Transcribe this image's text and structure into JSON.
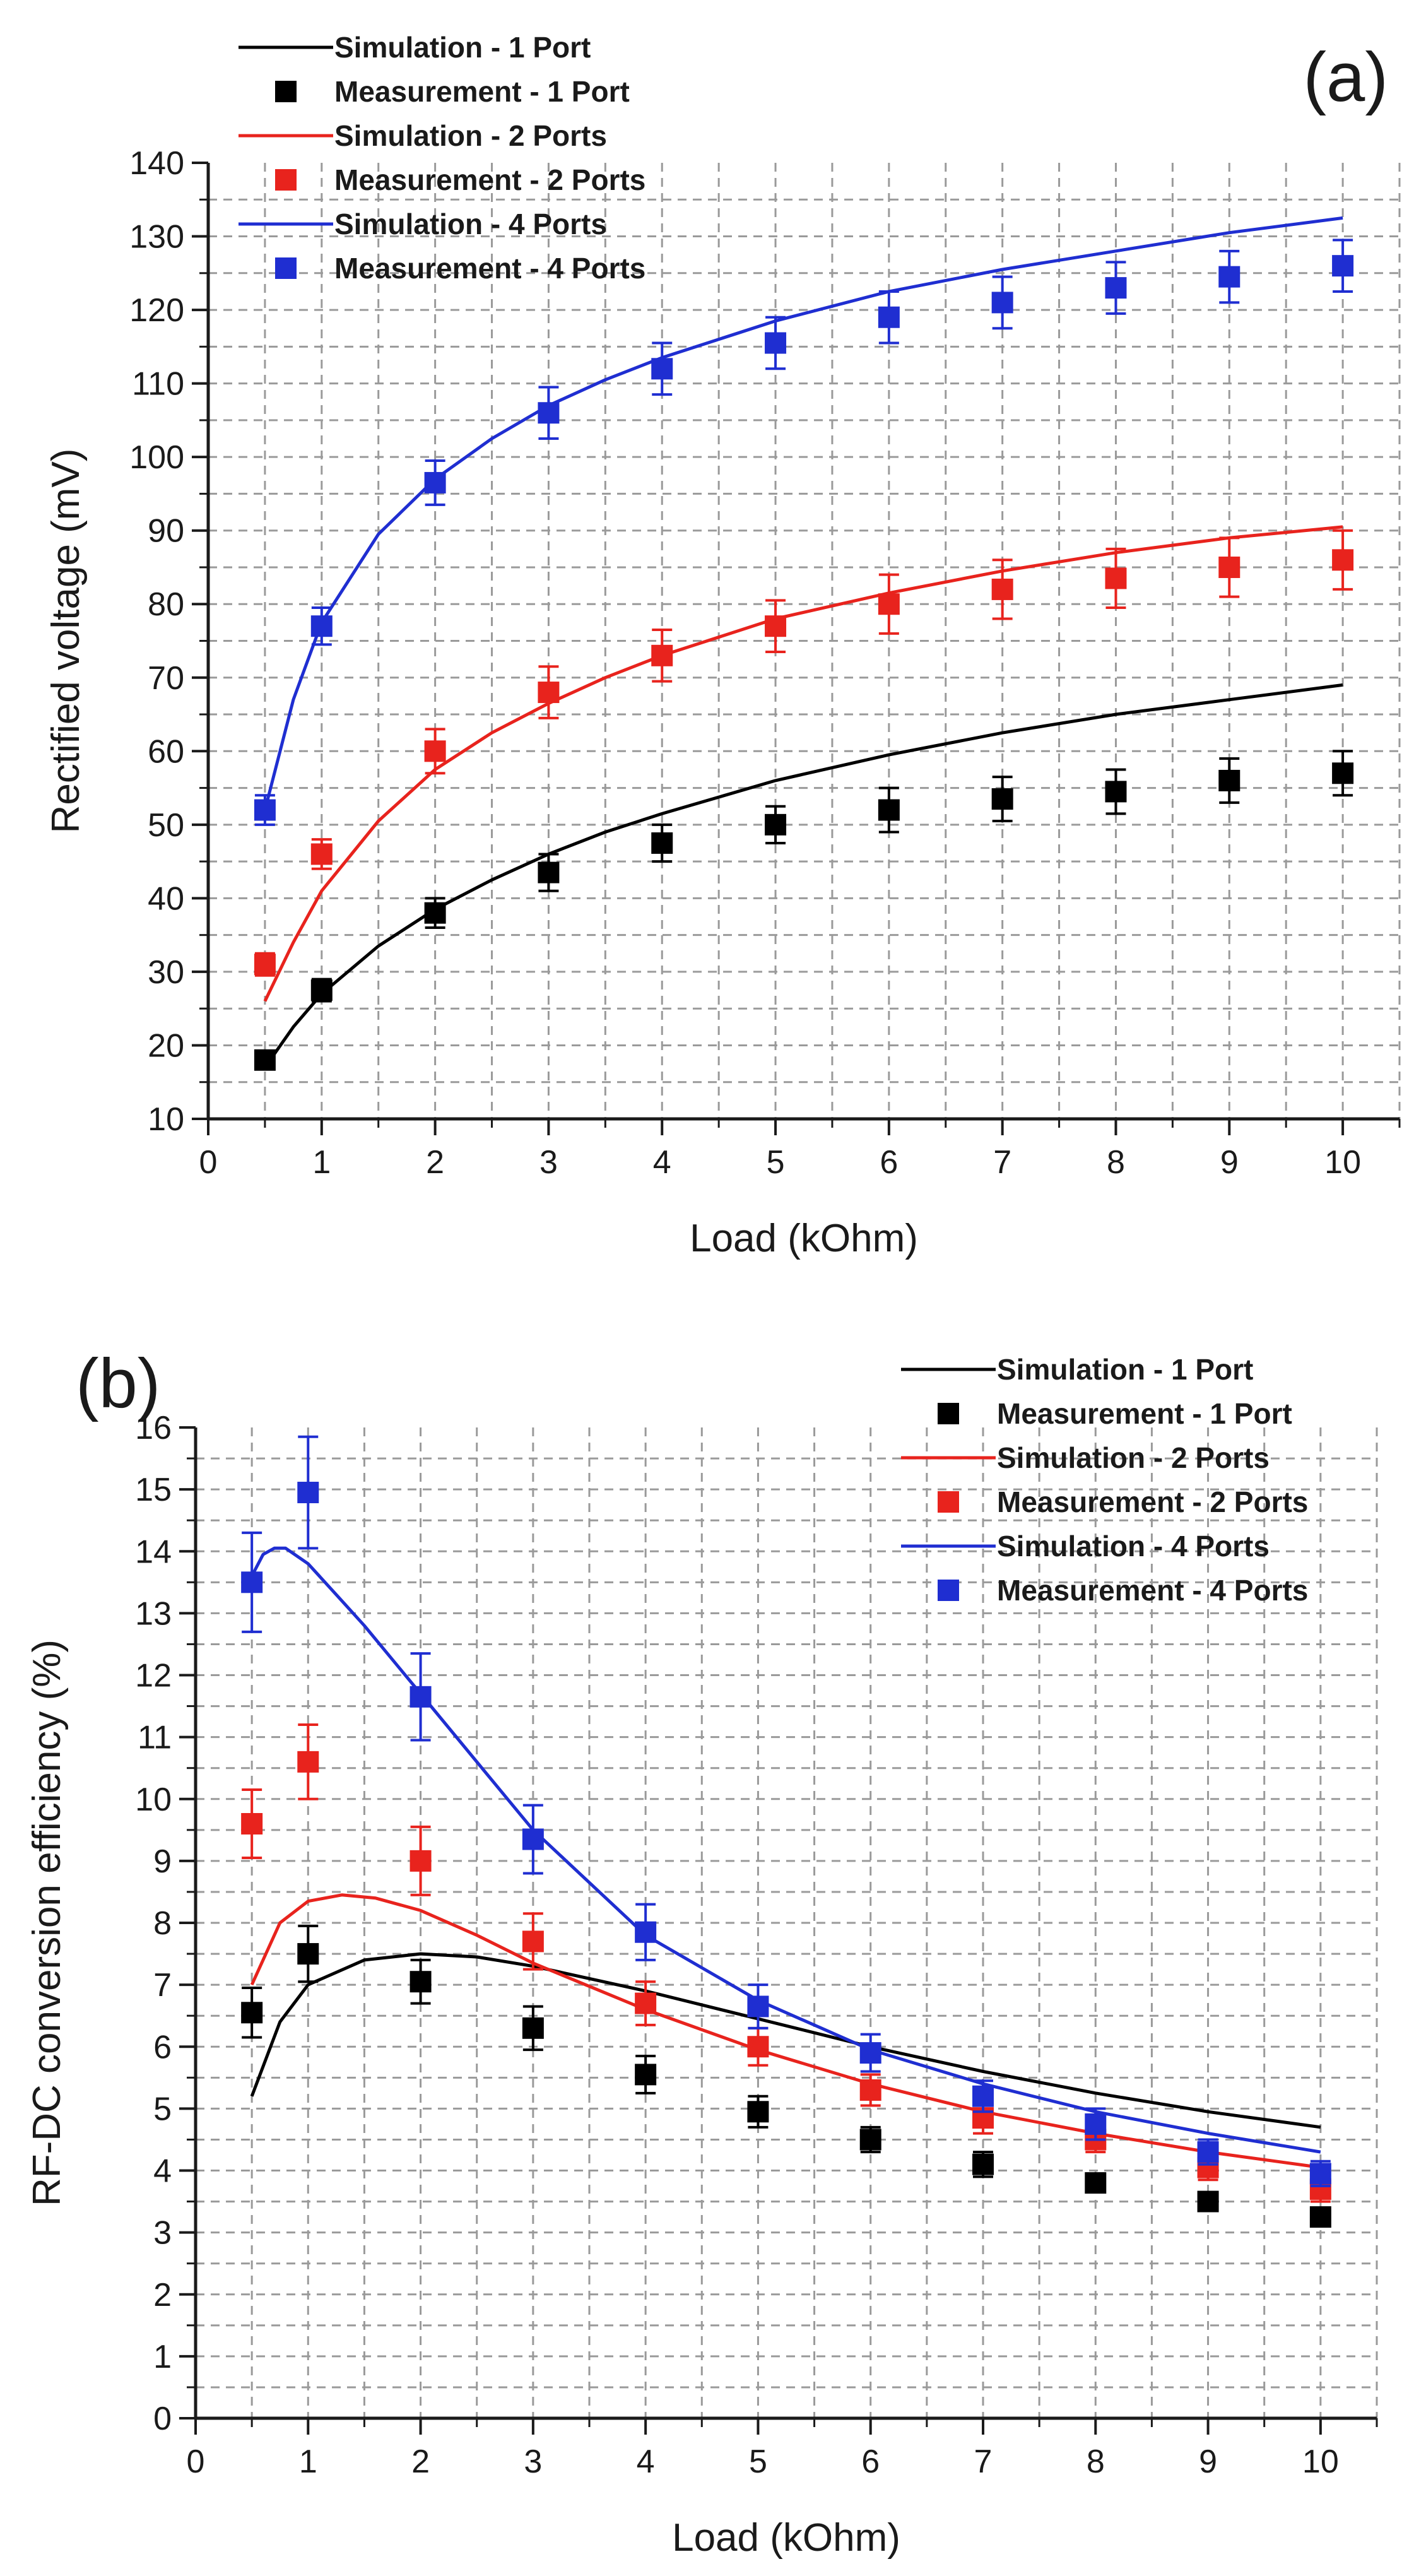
{
  "chart_data": [
    {
      "panel_label": "(a)",
      "type": "line",
      "xlabel": "Load (kOhm)",
      "ylabel": "Rectified voltage (mV)",
      "xlim": [
        0,
        10.5
      ],
      "ylim": [
        10,
        140
      ],
      "xticks": [
        0,
        1,
        2,
        3,
        4,
        5,
        6,
        7,
        8,
        9,
        10
      ],
      "yticks": [
        10,
        20,
        30,
        40,
        50,
        60,
        70,
        80,
        90,
        100,
        110,
        120,
        130,
        140
      ],
      "grid": true,
      "legend_position": "top-left",
      "series": [
        {
          "name": "Simulation - 1 Port",
          "kind": "line",
          "color": "#000000",
          "x": [
            0.5,
            0.75,
            1,
            1.5,
            2,
            2.5,
            3,
            3.5,
            4,
            5,
            6,
            7,
            8,
            9,
            10
          ],
          "y": [
            17,
            22.5,
            27,
            33.5,
            38.5,
            42.5,
            46,
            49,
            51.5,
            56,
            59.5,
            62.5,
            65,
            67,
            69
          ]
        },
        {
          "name": "Measurement - 1 Port",
          "kind": "marker",
          "color": "#000000",
          "x": [
            0.5,
            1,
            2,
            3,
            4,
            5,
            6,
            7,
            8,
            9,
            10
          ],
          "y": [
            18,
            27.5,
            38,
            43.5,
            47.5,
            50,
            52,
            53.5,
            54.5,
            56,
            57
          ],
          "err": [
            1,
            1.5,
            2,
            2.5,
            2.5,
            2.5,
            3,
            3,
            3,
            3,
            3
          ]
        },
        {
          "name": "Simulation - 2 Ports",
          "kind": "line",
          "color": "#e8231d",
          "x": [
            0.5,
            0.75,
            1,
            1.5,
            2,
            2.5,
            3,
            3.5,
            4,
            5,
            6,
            7,
            8,
            9,
            10
          ],
          "y": [
            26,
            34,
            41,
            50.5,
            57.5,
            62.5,
            66.5,
            70,
            73,
            78,
            81.5,
            84.5,
            87,
            89,
            90.5
          ]
        },
        {
          "name": "Measurement - 2 Ports",
          "kind": "marker",
          "color": "#e8231d",
          "x": [
            0.5,
            1,
            2,
            3,
            4,
            5,
            6,
            7,
            8,
            9,
            10
          ],
          "y": [
            31,
            46,
            60,
            68,
            73,
            77,
            80,
            82,
            83.5,
            85,
            86
          ],
          "err": [
            1.5,
            2,
            3,
            3.5,
            3.5,
            3.5,
            4,
            4,
            4,
            4,
            4
          ]
        },
        {
          "name": "Simulation - 4 Ports",
          "kind": "line",
          "color": "#1f2ed1",
          "x": [
            0.5,
            0.75,
            1,
            1.5,
            2,
            2.5,
            3,
            3.5,
            4,
            5,
            6,
            7,
            8,
            9,
            10
          ],
          "y": [
            52,
            67,
            77.5,
            89.5,
            97,
            102.5,
            107,
            110.5,
            113.5,
            118.5,
            122.5,
            125.5,
            128,
            130.5,
            132.5
          ]
        },
        {
          "name": "Measurement - 4 Ports",
          "kind": "marker",
          "color": "#1f2ed1",
          "x": [
            0.5,
            1,
            2,
            3,
            4,
            5,
            6,
            7,
            8,
            9,
            10
          ],
          "y": [
            52,
            77,
            96.5,
            106,
            112,
            115.5,
            119,
            121,
            123,
            124.5,
            126
          ],
          "err": [
            2,
            2.5,
            3,
            3.5,
            3.5,
            3.5,
            3.5,
            3.5,
            3.5,
            3.5,
            3.5
          ]
        }
      ]
    },
    {
      "panel_label": "(b)",
      "type": "line",
      "xlabel": "Load (kOhm)",
      "ylabel": "RF-DC conversion efficiency (%)",
      "xlim": [
        0,
        10.5
      ],
      "ylim": [
        0,
        16
      ],
      "xticks": [
        0,
        1,
        2,
        3,
        4,
        5,
        6,
        7,
        8,
        9,
        10
      ],
      "yticks": [
        0,
        1,
        2,
        3,
        4,
        5,
        6,
        7,
        8,
        9,
        10,
        11,
        12,
        13,
        14,
        15,
        16
      ],
      "grid": true,
      "legend_position": "top-right",
      "series": [
        {
          "name": "Simulation - 1 Port",
          "kind": "line",
          "color": "#000000",
          "x": [
            0.5,
            0.75,
            1,
            1.5,
            2,
            2.5,
            3,
            4,
            5,
            6,
            7,
            8,
            9,
            10
          ],
          "y": [
            5.2,
            6.4,
            7.0,
            7.4,
            7.5,
            7.45,
            7.3,
            6.9,
            6.45,
            6.0,
            5.6,
            5.25,
            4.95,
            4.7
          ]
        },
        {
          "name": "Measurement - 1 Port",
          "kind": "marker",
          "color": "#000000",
          "x": [
            0.5,
            1,
            2,
            3,
            4,
            5,
            6,
            7,
            8,
            9,
            10
          ],
          "y": [
            6.55,
            7.5,
            7.05,
            6.3,
            5.55,
            4.95,
            4.5,
            4.1,
            3.8,
            3.5,
            3.25
          ],
          "err": [
            0.4,
            0.45,
            0.35,
            0.35,
            0.3,
            0.25,
            0.2,
            0.2,
            0.15,
            0.15,
            0.15
          ]
        },
        {
          "name": "Simulation - 2 Ports",
          "kind": "line",
          "color": "#e8231d",
          "x": [
            0.5,
            0.75,
            1,
            1.3,
            1.6,
            2,
            2.5,
            3,
            4,
            5,
            6,
            7,
            8,
            9,
            10
          ],
          "y": [
            7.0,
            8.0,
            8.35,
            8.45,
            8.4,
            8.2,
            7.8,
            7.35,
            6.6,
            5.95,
            5.4,
            4.95,
            4.6,
            4.3,
            4.05
          ]
        },
        {
          "name": "Measurement - 2 Ports",
          "kind": "marker",
          "color": "#e8231d",
          "x": [
            0.5,
            1,
            2,
            3,
            4,
            5,
            6,
            7,
            8,
            9,
            10
          ],
          "y": [
            9.6,
            10.6,
            9.0,
            7.7,
            6.7,
            6.0,
            5.3,
            4.85,
            4.5,
            4.05,
            3.7
          ],
          "err": [
            0.55,
            0.6,
            0.55,
            0.45,
            0.35,
            0.3,
            0.25,
            0.25,
            0.2,
            0.2,
            0.2
          ]
        },
        {
          "name": "Simulation - 4 Ports",
          "kind": "line",
          "color": "#1f2ed1",
          "x": [
            0.5,
            0.6,
            0.7,
            0.8,
            1,
            1.25,
            1.5,
            2,
            2.5,
            3,
            4,
            5,
            6,
            7,
            8,
            9,
            10
          ],
          "y": [
            13.6,
            13.95,
            14.05,
            14.05,
            13.8,
            13.3,
            12.8,
            11.7,
            10.6,
            9.5,
            7.8,
            6.75,
            5.95,
            5.4,
            4.95,
            4.6,
            4.3
          ]
        },
        {
          "name": "Measurement - 4 Ports",
          "kind": "marker",
          "color": "#1f2ed1",
          "x": [
            0.5,
            1,
            2,
            3,
            4,
            5,
            6,
            7,
            8,
            9,
            10
          ],
          "y": [
            13.5,
            14.95,
            11.65,
            9.35,
            7.85,
            6.65,
            5.9,
            5.2,
            4.75,
            4.3,
            3.95
          ],
          "err": [
            0.8,
            0.9,
            0.7,
            0.55,
            0.45,
            0.35,
            0.3,
            0.25,
            0.25,
            0.2,
            0.2
          ]
        }
      ]
    }
  ]
}
